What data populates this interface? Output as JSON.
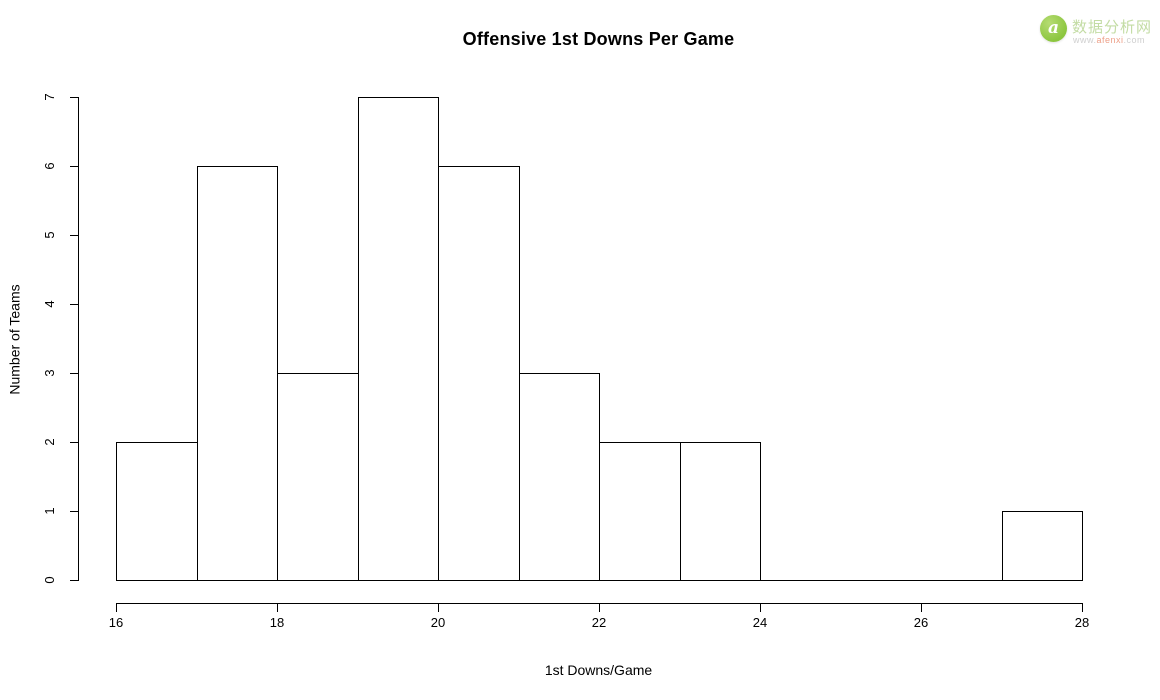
{
  "title": "Offensive 1st Downs Per Game",
  "watermark": {
    "logo_glyph": "a",
    "site_name": "数据分析网",
    "url_prefix": "www.",
    "url_domain": "afenxi",
    "url_suffix": ".com",
    "circle_color": "#8cc63f",
    "name_color": "#c3dca4",
    "domain_color": "#eda089",
    "url_gray": "#cfcfcf"
  },
  "chart_data": {
    "type": "bar",
    "subtype": "histogram",
    "title": "Offensive 1st Downs Per Game",
    "xlabel": "1st Downs/Game",
    "ylabel": "Number of Teams",
    "bin_start": 16,
    "bin_width": 1,
    "bin_edges": [
      16,
      17,
      18,
      19,
      20,
      21,
      22,
      23,
      24,
      25,
      26,
      27,
      28
    ],
    "counts": [
      2,
      6,
      3,
      7,
      6,
      3,
      2,
      2,
      0,
      0,
      0,
      1
    ],
    "xlim": [
      16,
      28
    ],
    "ylim": [
      0,
      7
    ],
    "x_ticks": [
      16,
      18,
      20,
      22,
      24,
      26,
      28
    ],
    "y_ticks": [
      0,
      1,
      2,
      3,
      4,
      5,
      6,
      7
    ],
    "grid": false,
    "legend": "none",
    "bar_fill": "#ffffff",
    "bar_border": "#000000",
    "axis_color": "#000000"
  }
}
